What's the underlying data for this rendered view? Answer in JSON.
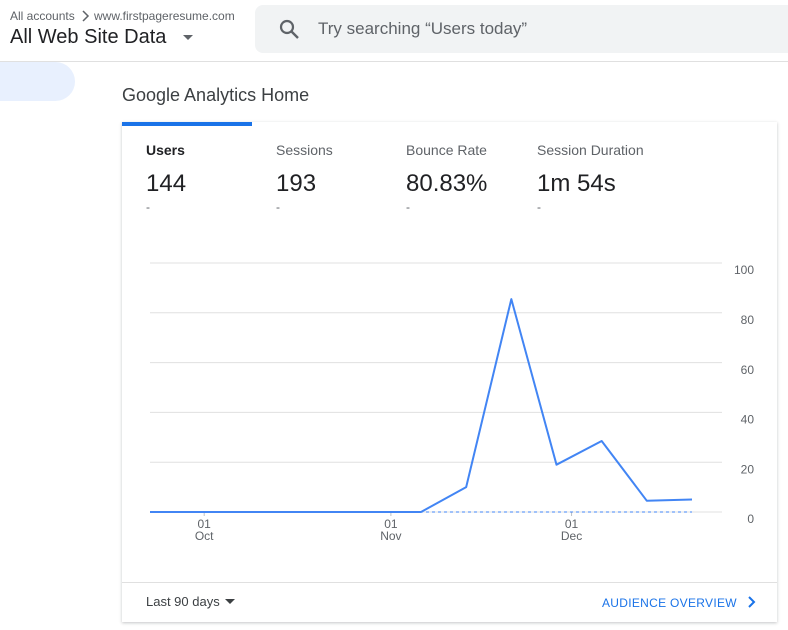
{
  "header": {
    "breadcrumb": [
      "All accounts",
      "www.firstpageresume.com"
    ],
    "view": "All Web Site Data",
    "search_placeholder": "Try searching “Users today”"
  },
  "page_title": "Google Analytics Home",
  "metrics": [
    {
      "label": "Users",
      "value": "144",
      "change": "-"
    },
    {
      "label": "Sessions",
      "value": "193",
      "change": "-"
    },
    {
      "label": "Bounce Rate",
      "value": "80.83%",
      "change": "-"
    },
    {
      "label": "Session Duration",
      "value": "1m 54s",
      "change": "-"
    }
  ],
  "chart_data": {
    "type": "line",
    "x": [
      0,
      7.5,
      15,
      22.5,
      30,
      37.5,
      45,
      52.5,
      60,
      67.5,
      75,
      82.5,
      90
    ],
    "series": [
      {
        "color": "#4285f4",
        "dashed": true,
        "values": [
          0,
          0,
          0,
          0,
          0,
          0,
          0,
          0,
          0,
          0,
          0,
          0,
          0
        ]
      },
      {
        "color": "#4285f4",
        "dashed": false,
        "values": [
          0,
          0,
          0,
          0,
          0,
          0,
          0,
          10,
          85.5,
          19,
          28.5,
          4.5,
          5
        ]
      }
    ],
    "xlim": [
      0,
      90
    ],
    "xticks": [
      {
        "value": 9,
        "label": "01 Oct"
      },
      {
        "value": 40,
        "label": "01 Nov"
      },
      {
        "value": 70,
        "label": "01 Dec"
      }
    ],
    "ylim": [
      0,
      100
    ],
    "yticks": [
      0,
      20,
      40,
      60,
      80,
      100
    ],
    "grid": true
  },
  "footer": {
    "date_range": "Last 90 days",
    "link": "AUDIENCE OVERVIEW"
  }
}
